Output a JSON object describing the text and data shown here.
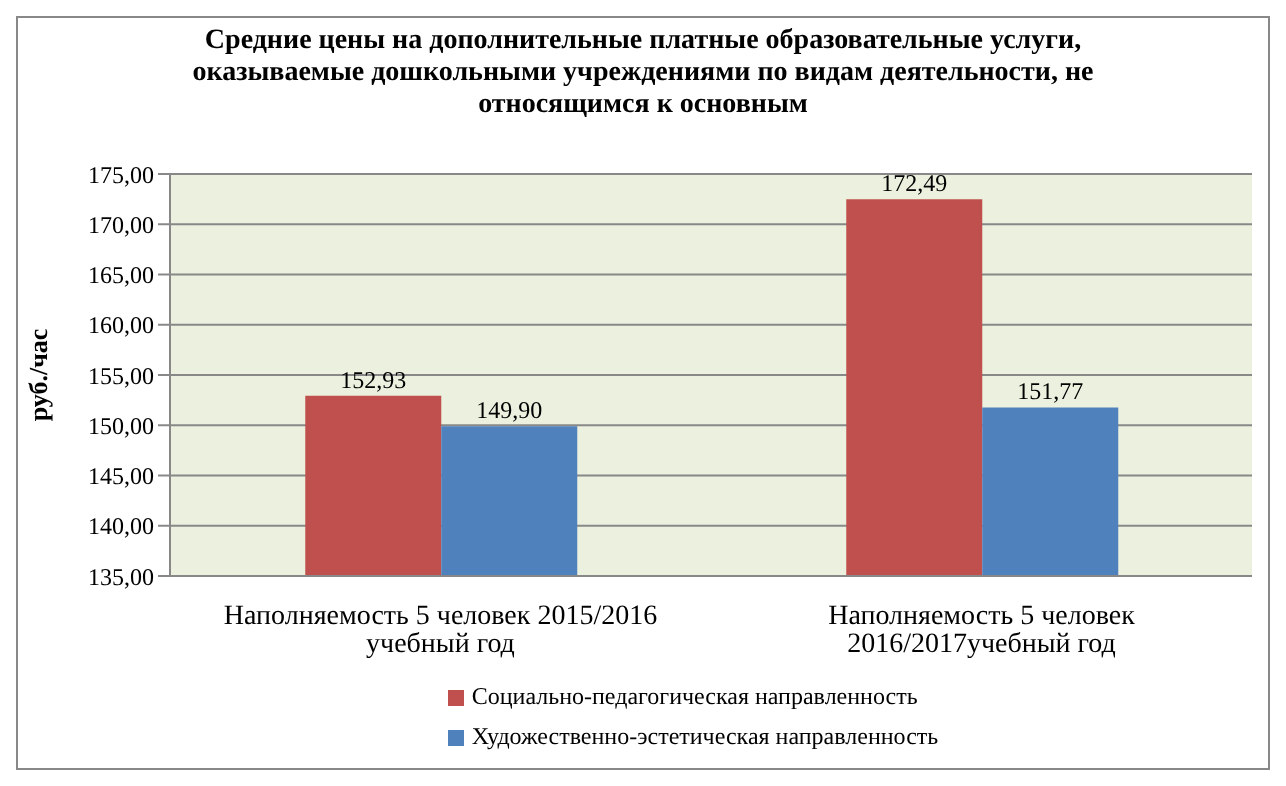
{
  "chart_data": {
    "type": "bar",
    "title": "Средние  цены на дополнительные платные образовательные услуги, оказываемые дошкольными  учреждениями по видам деятельности, не относящимся  к основным",
    "ylabel": "руб./час",
    "categories": [
      "Наполняемость 5 человек 2015/2016 учебный год",
      "Наполняемость 5 человек 2016/2017учебный  год"
    ],
    "series": [
      {
        "name": "Социально-педагогическая  направленность",
        "color": "#c0504d",
        "values": [
          152.93,
          172.49
        ],
        "value_labels": [
          "152,93",
          "172,49"
        ]
      },
      {
        "name": "Художественно-эстетическая  направленность",
        "color": "#4f81bd",
        "values": [
          149.9,
          151.77
        ],
        "value_labels": [
          "149,90",
          "151,77"
        ]
      }
    ],
    "ylim": [
      135,
      175
    ],
    "yticks": [
      {
        "value": 135,
        "label": "135,00"
      },
      {
        "value": 140,
        "label": "140,00"
      },
      {
        "value": 145,
        "label": "145,00"
      },
      {
        "value": 150,
        "label": "150,00"
      },
      {
        "value": 155,
        "label": "155,00"
      },
      {
        "value": 160,
        "label": "160,00"
      },
      {
        "value": 165,
        "label": "165,00"
      },
      {
        "value": 170,
        "label": "170,00"
      },
      {
        "value": 175,
        "label": "175,00"
      }
    ],
    "grid": "y",
    "legend": "bottom"
  }
}
